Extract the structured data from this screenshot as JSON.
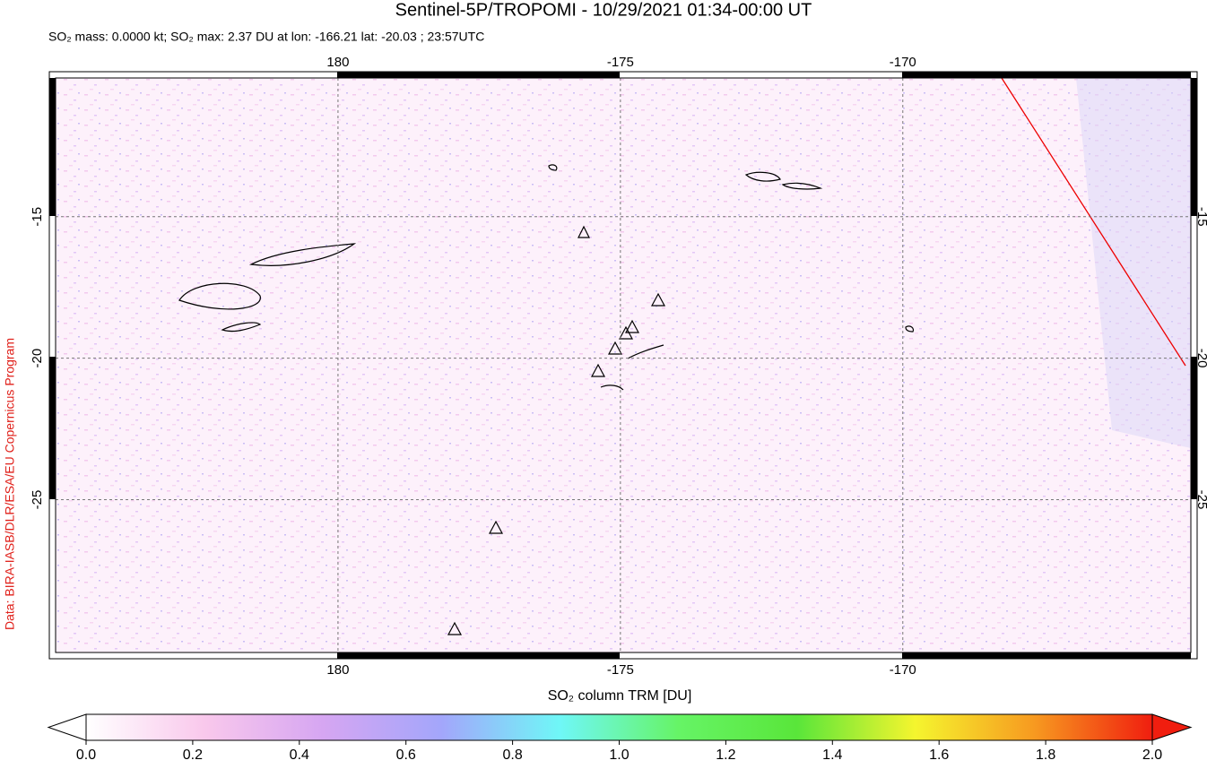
{
  "map": {
    "title": "Sentinel-5P/TROPOMI - 10/29/2021 01:34-00:00 UT",
    "subtitle": "SO₂ mass: 0.0000 kt; SO₂ max: 2.37 DU at lon: -166.21 lat: -20.03 ; 23:57UTC",
    "credit": "Data: BIRA-IASB/DLR/ESA/EU Copernicus Program",
    "xlim": [
      -185,
      -164.9
    ],
    "ylim": [
      -30.4,
      -10.1
    ],
    "xticks": [
      {
        "value": -180,
        "label": "180"
      },
      -175,
      -170
    ],
    "yticks": [
      -15,
      -20,
      -25
    ],
    "grid": true,
    "colorbar": {
      "label": "SO₂ column TRM [DU]",
      "lim": [
        0,
        2
      ],
      "ticks": [
        {
          "value": 0,
          "label": "0.0"
        },
        {
          "value": 0.2,
          "label": "0.2"
        },
        {
          "value": 0.4,
          "label": "0.4"
        },
        {
          "value": 0.6,
          "label": "0.6"
        },
        {
          "value": 0.8,
          "label": "0.8"
        },
        {
          "value": 1,
          "label": "1.0"
        },
        {
          "value": 1.2,
          "label": "1.2"
        },
        {
          "value": 1.4,
          "label": "1.4"
        },
        {
          "value": 1.6,
          "label": "1.6"
        },
        {
          "value": 1.8,
          "label": "1.8"
        },
        {
          "value": 2,
          "label": "2.0"
        }
      ],
      "colors": [
        "#ffffff",
        "#f9c8ec",
        "#d6a6f2",
        "#a3a6fb",
        "#6ff7f7",
        "#66f466",
        "#59e63a",
        "#f5f52e",
        "#f79a20",
        "#f01e0f"
      ]
    }
  }
}
